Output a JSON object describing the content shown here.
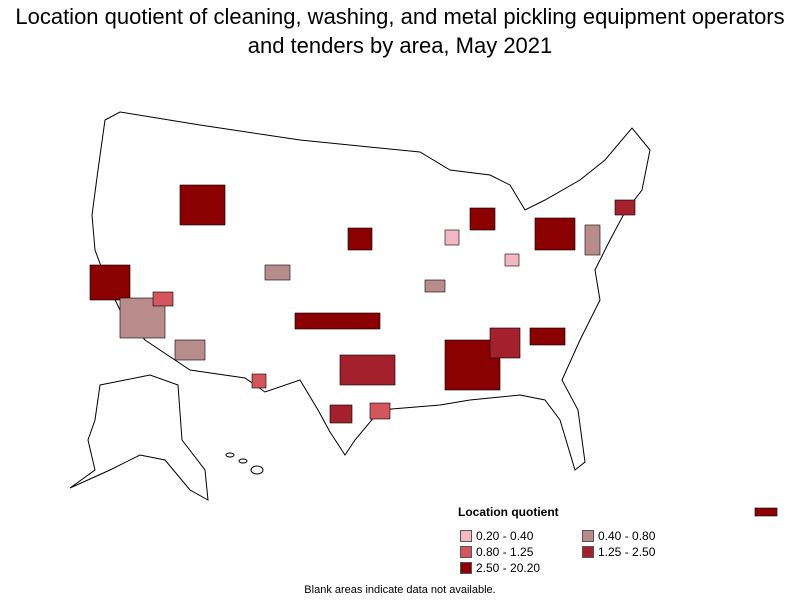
{
  "title": "Location quotient of cleaning, washing, and metal pickling equipment operators and tenders by area, May 2021",
  "legend": {
    "title": "Location quotient",
    "items": [
      {
        "label": "0.20 - 0.40",
        "color": "#f4b8c2"
      },
      {
        "label": "0.40 - 0.80",
        "color": "#b98c8c"
      },
      {
        "label": "0.80 - 1.25",
        "color": "#d2565c"
      },
      {
        "label": "1.25 - 2.50",
        "color": "#a3202c"
      },
      {
        "label": "2.50 - 20.20",
        "color": "#8b0000"
      }
    ]
  },
  "note": "Blank areas indicate data not available."
}
